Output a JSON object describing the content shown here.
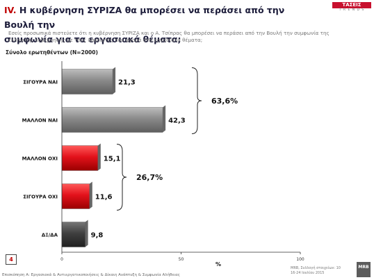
{
  "header": {
    "number": "IV.",
    "title_line1": "Η κυβέρνηση ΣΥΡΙΖΑ θα μπορέσει να περάσει από την Βουλή την",
    "title_line2": "συμφωνία για τα εργασιακά θέματα;",
    "logo_name": "ΤΑΣΕΙΣ",
    "logo_sub": "T R E N D S"
  },
  "question": {
    "line1": "Εσείς προσωπικά πιστεύετε ότι η κυβέρνηση ΣΥΡΙΖΑ και ο Α. Τσίπρας θα μπορέσει να περάσει από την Βουλή την συμφωνία της",
    "line2": "ελληνικής κυβέρνησης με τους δανειστές που αφορά στα εργασιακά θέματα;"
  },
  "total_label": "Σύνολο ερωτηθέντων (Ν=2000)",
  "chart_data": {
    "type": "bar",
    "orientation": "horizontal",
    "categories": [
      "ΣΙΓΟΥΡΑ ΝΑΙ",
      "ΜΑΛΛΟΝ ΝΑΙ",
      "ΜΑΛΛΟΝ ΟΧΙ",
      "ΣΙΓΟΥΡΑ ΟΧΙ",
      "ΔΞ/ΔΑ"
    ],
    "values": [
      21.3,
      42.3,
      15.1,
      11.6,
      9.8
    ],
    "value_labels": [
      "21,3",
      "42,3",
      "15,1",
      "11,6",
      "9,8"
    ],
    "colors": [
      "#8c8c8c",
      "#8c8c8c",
      "#e3121b",
      "#e3121b",
      "#3f3f3f"
    ],
    "xlim": [
      0,
      100
    ],
    "xticks": [
      "0",
      "50",
      "100"
    ],
    "xlabel": "%",
    "groups": [
      {
        "label": "63,6%",
        "from": 0,
        "to": 1
      },
      {
        "label": "26,7%",
        "from": 2,
        "to": 3
      }
    ]
  },
  "page_number": "4",
  "footer": "Επισκόπηση Α: Εργασιακά & Αντιεργατικοποιήσεις & Δίκαιη Ανάπτυξη & Συμφωνία Αλήθειας",
  "source": {
    "line1": "MRB, Συλλογή στοιχείων: 10",
    "line2": "16-24 Ιουλίου 2015",
    "logo": "MRB"
  }
}
